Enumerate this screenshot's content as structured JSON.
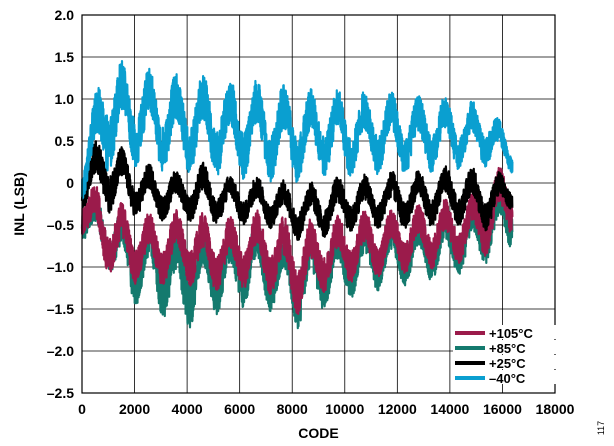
{
  "figure_id": "117",
  "chart_data": {
    "type": "line",
    "title": "",
    "xlabel": "CODE",
    "ylabel": "INL (LSB)",
    "xlim": [
      0,
      18000
    ],
    "ylim": [
      -2.5,
      2.0
    ],
    "x_ticks": [
      "0",
      "2000",
      "4000",
      "6000",
      "8000",
      "10000",
      "12000",
      "14000",
      "16000",
      "18000"
    ],
    "y_ticks": [
      "2.0",
      "1.5",
      "1.0",
      "0.5",
      "0",
      "–0.5",
      "–1.0",
      "–1.5",
      "–2.0",
      "–2.5"
    ],
    "grid": true,
    "legend_position": "bottom-right",
    "x_extent": [
      0,
      16383
    ],
    "series": [
      {
        "name": "+105°C",
        "color": "#9b1b4b",
        "x": [
          0,
          900,
          1900,
          2800,
          3700,
          4600,
          5500,
          6400,
          7400,
          8300,
          9200,
          10100,
          11000,
          11900,
          12800,
          13700,
          14600,
          15500,
          16383
        ],
        "min": [
          -0.6,
          -1.1,
          -1.2,
          -1.25,
          -1.2,
          -1.3,
          -1.3,
          -1.25,
          -1.35,
          -1.6,
          -1.3,
          -1.2,
          -1.15,
          -1.1,
          -1.05,
          -1.0,
          -0.95,
          -0.85,
          -0.6
        ],
        "max": [
          0.1,
          -0.1,
          -0.3,
          -0.35,
          -0.3,
          -0.35,
          -0.4,
          -0.3,
          -0.35,
          -0.45,
          -0.4,
          -0.35,
          -0.3,
          -0.3,
          -0.25,
          -0.2,
          -0.15,
          0.1,
          0.3
        ]
      },
      {
        "name": "+85°C",
        "color": "#147a6e",
        "x": [
          0,
          900,
          1900,
          2800,
          3700,
          4600,
          5500,
          6400,
          7400,
          8300,
          9200,
          10100,
          11000,
          11900,
          12800,
          13700,
          14600,
          15500,
          16383
        ],
        "min": [
          -0.7,
          -1.0,
          -1.45,
          -1.5,
          -1.85,
          -1.6,
          -1.55,
          -1.45,
          -1.55,
          -1.75,
          -1.5,
          -1.4,
          -1.3,
          -1.25,
          -1.2,
          -1.15,
          -1.1,
          -0.95,
          -0.8
        ],
        "max": [
          0.0,
          -0.2,
          -0.35,
          -0.4,
          -0.4,
          -0.45,
          -0.5,
          -0.4,
          -0.5,
          -0.55,
          -0.5,
          -0.45,
          -0.4,
          -0.4,
          -0.35,
          -0.3,
          -0.25,
          -0.05,
          0.15
        ]
      },
      {
        "name": "+25°C",
        "color": "#000000",
        "x": [
          0,
          900,
          1900,
          2800,
          3700,
          4600,
          5500,
          6400,
          7400,
          8300,
          9200,
          10100,
          11000,
          11900,
          12800,
          13700,
          14600,
          15500,
          16383
        ],
        "min": [
          -0.3,
          -0.35,
          -0.4,
          -0.45,
          -0.45,
          -0.5,
          -0.5,
          -0.5,
          -0.55,
          -0.7,
          -0.65,
          -0.6,
          -0.55,
          -0.55,
          -0.55,
          -0.5,
          -0.5,
          -0.6,
          -0.3
        ],
        "max": [
          0.3,
          0.65,
          0.3,
          0.2,
          0.15,
          0.25,
          0.1,
          0.1,
          0.05,
          0.0,
          0.05,
          0.1,
          0.1,
          0.15,
          0.15,
          0.2,
          0.2,
          0.15,
          0.1
        ]
      },
      {
        "name": "–40°C",
        "color": "#0a9fd0",
        "x": [
          0,
          900,
          1900,
          2800,
          3700,
          4600,
          5500,
          6400,
          7400,
          8300,
          9200,
          10100,
          11000,
          11900,
          12800,
          13700,
          14600,
          15500,
          16383
        ],
        "min": [
          -0.2,
          0.1,
          0.2,
          0.15,
          0.1,
          0.1,
          0.05,
          0.05,
          0.0,
          0.0,
          0.05,
          0.05,
          0.1,
          0.1,
          0.1,
          0.15,
          0.15,
          0.2,
          0.1
        ],
        "max": [
          0.4,
          1.58,
          1.4,
          1.35,
          1.3,
          1.3,
          1.25,
          1.25,
          1.2,
          1.15,
          1.15,
          1.1,
          1.1,
          1.1,
          1.05,
          1.05,
          1.0,
          0.95,
          0.5
        ]
      }
    ]
  }
}
